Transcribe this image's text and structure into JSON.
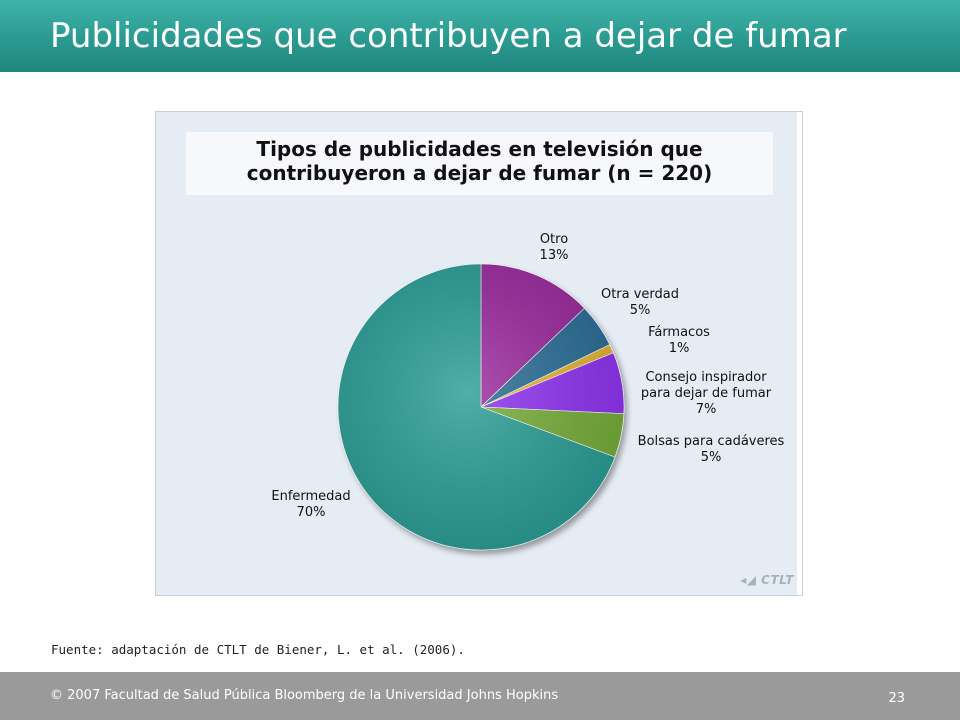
{
  "slide": {
    "title": "Publicidades que contribuyen a dejar de fumar",
    "source": "Fuente: adaptación de CTLT de Biener, L. et al. (2006).",
    "footer_copyright": "© 2007 Facultad de Salud Pública Bloomberg de la Universidad Johns Hopkins",
    "page_number": "23",
    "watermark": "CTLT"
  },
  "colors": {
    "header": "#2a9a90",
    "footer": "#9a9a9a",
    "enfermedad": "#2a9d95",
    "otro": "#9b2a9e",
    "otra_verdad": "#2a6d96",
    "farmacos": "#e6b234",
    "consejo": "#8e32f0",
    "bolsas": "#76ad38"
  },
  "chart_data": {
    "type": "pie",
    "title_lines": [
      "Tipos de publicidades en televisión que",
      "contribuyeron a dejar de fumar (n = 220)"
    ],
    "slices": [
      {
        "label": [
          "Otro"
        ],
        "pct_label": "13%",
        "value": 13,
        "color": "#9b2a9e"
      },
      {
        "label": [
          "Otra verdad"
        ],
        "pct_label": "5%",
        "value": 5,
        "color": "#2a6d96"
      },
      {
        "label": [
          "Fármacos"
        ],
        "pct_label": "1%",
        "value": 1,
        "color": "#e6b234"
      },
      {
        "label": [
          "Consejo inspirador",
          "para dejar de fumar"
        ],
        "pct_label": "7%",
        "value": 7,
        "color": "#8e32f0"
      },
      {
        "label": [
          "Bolsas para cadáveres"
        ],
        "pct_label": "5%",
        "value": 5,
        "color": "#76ad38"
      },
      {
        "label": [
          "Enfermedad"
        ],
        "pct_label": "70%",
        "value": 70,
        "color": "#2a9d95"
      }
    ]
  }
}
